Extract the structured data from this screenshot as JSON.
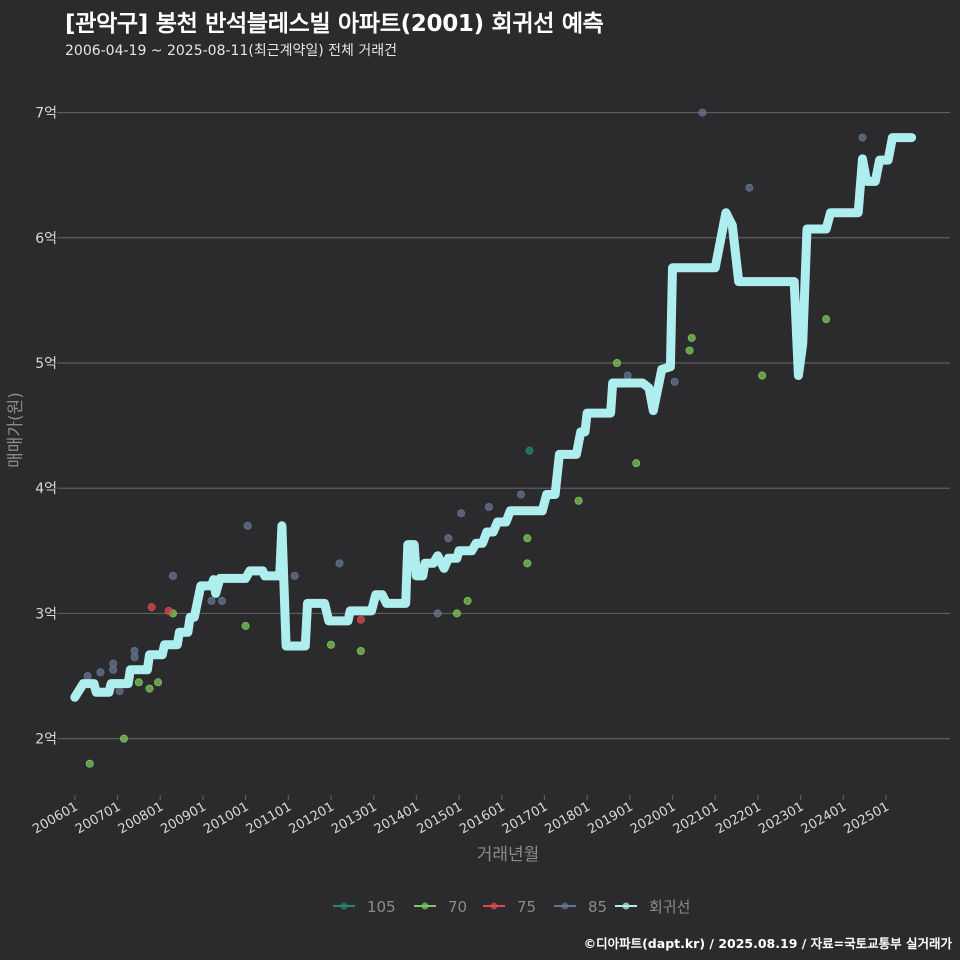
{
  "title": "[관악구] 봉천 반석블레스빌 아파트(2001) 회귀선 예측",
  "subtitle": "2006-04-19 ~ 2025-08-11(최근계약일) 전체 거래건",
  "footer": "©디아파트(dapt.kr) / 2025.08.19 / 자료=국토교통부 실거래가",
  "colors": {
    "background": "#2b2a2c",
    "grid": "#5e5e5e",
    "regression": "#aeeeee",
    "s105": "#1f8a6e",
    "s70": "#7cc65a",
    "s75": "#d94c4c",
    "s85": "#66748f"
  },
  "chart_data": {
    "type": "scatter",
    "xlabel": "거래년월",
    "ylabel": "매매가(원)",
    "ylim": [
      1.55,
      7.3
    ],
    "xlim": [
      2005.7,
      2026.5
    ],
    "y_ticks": [
      {
        "value": 2,
        "label": "2억"
      },
      {
        "value": 3,
        "label": "3억"
      },
      {
        "value": 4,
        "label": "4억"
      },
      {
        "value": 5,
        "label": "5억"
      },
      {
        "value": 6,
        "label": "6억"
      },
      {
        "value": 7,
        "label": "7억"
      }
    ],
    "x_ticks": [
      {
        "value": 2006,
        "label": "200601"
      },
      {
        "value": 2007,
        "label": "200701"
      },
      {
        "value": 2008,
        "label": "200801"
      },
      {
        "value": 2009,
        "label": "200901"
      },
      {
        "value": 2010,
        "label": "201001"
      },
      {
        "value": 2011,
        "label": "201101"
      },
      {
        "value": 2012,
        "label": "201201"
      },
      {
        "value": 2013,
        "label": "201301"
      },
      {
        "value": 2014,
        "label": "201401"
      },
      {
        "value": 2015,
        "label": "201501"
      },
      {
        "value": 2016,
        "label": "201601"
      },
      {
        "value": 2017,
        "label": "201701"
      },
      {
        "value": 2018,
        "label": "201801"
      },
      {
        "value": 2019,
        "label": "201901"
      },
      {
        "value": 2020,
        "label": "202001"
      },
      {
        "value": 2021,
        "label": "202101"
      },
      {
        "value": 2022,
        "label": "202201"
      },
      {
        "value": 2023,
        "label": "202301"
      },
      {
        "value": 2024,
        "label": "202401"
      },
      {
        "value": 2025,
        "label": "202501"
      }
    ],
    "legend": {
      "placement": "bottom",
      "entries": [
        {
          "key": "s105",
          "label": "105"
        },
        {
          "key": "s70",
          "label": "70"
        },
        {
          "key": "s75",
          "label": "75"
        },
        {
          "key": "s85",
          "label": "85"
        },
        {
          "key": "regression",
          "label": "회귀선"
        }
      ]
    },
    "series": [
      {
        "key": "s105",
        "name": "105",
        "points": [
          [
            2016.65,
            4.3
          ]
        ]
      },
      {
        "key": "s70",
        "name": "70",
        "points": [
          [
            2006.35,
            1.8
          ],
          [
            2007.15,
            2.0
          ],
          [
            2007.5,
            2.45
          ],
          [
            2007.75,
            2.4
          ],
          [
            2007.95,
            2.45
          ],
          [
            2008.3,
            3.0
          ],
          [
            2010.0,
            2.9
          ],
          [
            2012.0,
            2.75
          ],
          [
            2012.7,
            2.7
          ],
          [
            2014.95,
            3.0
          ],
          [
            2015.2,
            3.1
          ],
          [
            2016.6,
            3.6
          ],
          [
            2016.6,
            3.4
          ],
          [
            2017.8,
            3.9
          ],
          [
            2018.7,
            5.0
          ],
          [
            2019.15,
            4.2
          ],
          [
            2020.4,
            5.1
          ],
          [
            2020.45,
            5.2
          ],
          [
            2022.1,
            4.9
          ],
          [
            2023.6,
            5.35
          ]
        ]
      },
      {
        "key": "s75",
        "name": "75",
        "points": [
          [
            2007.8,
            3.05
          ],
          [
            2008.2,
            3.02
          ],
          [
            2012.7,
            2.95
          ]
        ]
      },
      {
        "key": "s85",
        "name": "85",
        "points": [
          [
            2006.3,
            2.5
          ],
          [
            2006.6,
            2.53
          ],
          [
            2006.9,
            2.55
          ],
          [
            2006.9,
            2.6
          ],
          [
            2007.05,
            2.38
          ],
          [
            2007.4,
            2.7
          ],
          [
            2007.4,
            2.65
          ],
          [
            2008.3,
            3.3
          ],
          [
            2009.2,
            3.1
          ],
          [
            2009.45,
            3.1
          ],
          [
            2010.05,
            3.7
          ],
          [
            2011.15,
            3.3
          ],
          [
            2012.2,
            3.4
          ],
          [
            2014.5,
            3.0
          ],
          [
            2014.75,
            3.6
          ],
          [
            2015.05,
            3.8
          ],
          [
            2015.7,
            3.85
          ],
          [
            2016.45,
            3.95
          ],
          [
            2018.1,
            4.6
          ],
          [
            2018.95,
            4.9
          ],
          [
            2020.05,
            4.85
          ],
          [
            2020.7,
            7.0
          ],
          [
            2021.8,
            6.4
          ],
          [
            2024.45,
            6.8
          ]
        ]
      }
    ],
    "regression": [
      [
        2006.0,
        2.33
      ],
      [
        2006.2,
        2.44
      ],
      [
        2006.45,
        2.44
      ],
      [
        2006.5,
        2.37
      ],
      [
        2006.8,
        2.37
      ],
      [
        2006.85,
        2.44
      ],
      [
        2007.25,
        2.44
      ],
      [
        2007.3,
        2.55
      ],
      [
        2007.7,
        2.55
      ],
      [
        2007.75,
        2.67
      ],
      [
        2008.05,
        2.67
      ],
      [
        2008.1,
        2.75
      ],
      [
        2008.4,
        2.75
      ],
      [
        2008.45,
        2.85
      ],
      [
        2008.65,
        2.85
      ],
      [
        2008.7,
        2.97
      ],
      [
        2008.8,
        2.97
      ],
      [
        2008.95,
        3.22
      ],
      [
        2009.2,
        3.22
      ],
      [
        2009.25,
        3.27
      ],
      [
        2009.3,
        3.16
      ],
      [
        2009.4,
        3.28
      ],
      [
        2010.0,
        3.28
      ],
      [
        2010.1,
        3.34
      ],
      [
        2010.4,
        3.34
      ],
      [
        2010.45,
        3.3
      ],
      [
        2010.8,
        3.3
      ],
      [
        2010.85,
        3.7
      ],
      [
        2010.95,
        2.74
      ],
      [
        2011.4,
        2.74
      ],
      [
        2011.45,
        3.08
      ],
      [
        2011.85,
        3.08
      ],
      [
        2011.95,
        2.94
      ],
      [
        2012.4,
        2.94
      ],
      [
        2012.45,
        3.02
      ],
      [
        2012.95,
        3.02
      ],
      [
        2013.05,
        3.15
      ],
      [
        2013.2,
        3.15
      ],
      [
        2013.3,
        3.08
      ],
      [
        2013.75,
        3.08
      ],
      [
        2013.8,
        3.55
      ],
      [
        2013.95,
        3.55
      ],
      [
        2014.0,
        3.3
      ],
      [
        2014.15,
        3.3
      ],
      [
        2014.2,
        3.4
      ],
      [
        2014.4,
        3.4
      ],
      [
        2014.5,
        3.46
      ],
      [
        2014.65,
        3.36
      ],
      [
        2014.75,
        3.44
      ],
      [
        2014.95,
        3.44
      ],
      [
        2015.0,
        3.5
      ],
      [
        2015.3,
        3.5
      ],
      [
        2015.4,
        3.56
      ],
      [
        2015.55,
        3.56
      ],
      [
        2015.65,
        3.65
      ],
      [
        2015.8,
        3.65
      ],
      [
        2015.9,
        3.73
      ],
      [
        2016.1,
        3.73
      ],
      [
        2016.2,
        3.82
      ],
      [
        2016.95,
        3.82
      ],
      [
        2017.05,
        3.95
      ],
      [
        2017.25,
        3.95
      ],
      [
        2017.35,
        4.27
      ],
      [
        2017.75,
        4.27
      ],
      [
        2017.85,
        4.45
      ],
      [
        2017.95,
        4.45
      ],
      [
        2018.0,
        4.6
      ],
      [
        2018.55,
        4.6
      ],
      [
        2018.6,
        4.84
      ],
      [
        2019.3,
        4.84
      ],
      [
        2019.45,
        4.8
      ],
      [
        2019.55,
        4.62
      ],
      [
        2019.75,
        4.95
      ],
      [
        2019.95,
        4.97
      ],
      [
        2020.0,
        5.76
      ],
      [
        2021.0,
        5.76
      ],
      [
        2021.25,
        6.2
      ],
      [
        2021.4,
        6.1
      ],
      [
        2021.55,
        5.65
      ],
      [
        2022.85,
        5.65
      ],
      [
        2022.95,
        4.9
      ],
      [
        2023.05,
        5.15
      ],
      [
        2023.15,
        6.07
      ],
      [
        2023.6,
        6.07
      ],
      [
        2023.7,
        6.2
      ],
      [
        2024.35,
        6.2
      ],
      [
        2024.45,
        6.63
      ],
      [
        2024.55,
        6.45
      ],
      [
        2024.75,
        6.45
      ],
      [
        2024.85,
        6.62
      ],
      [
        2025.05,
        6.62
      ],
      [
        2025.15,
        6.8
      ],
      [
        2025.6,
        6.8
      ]
    ]
  }
}
